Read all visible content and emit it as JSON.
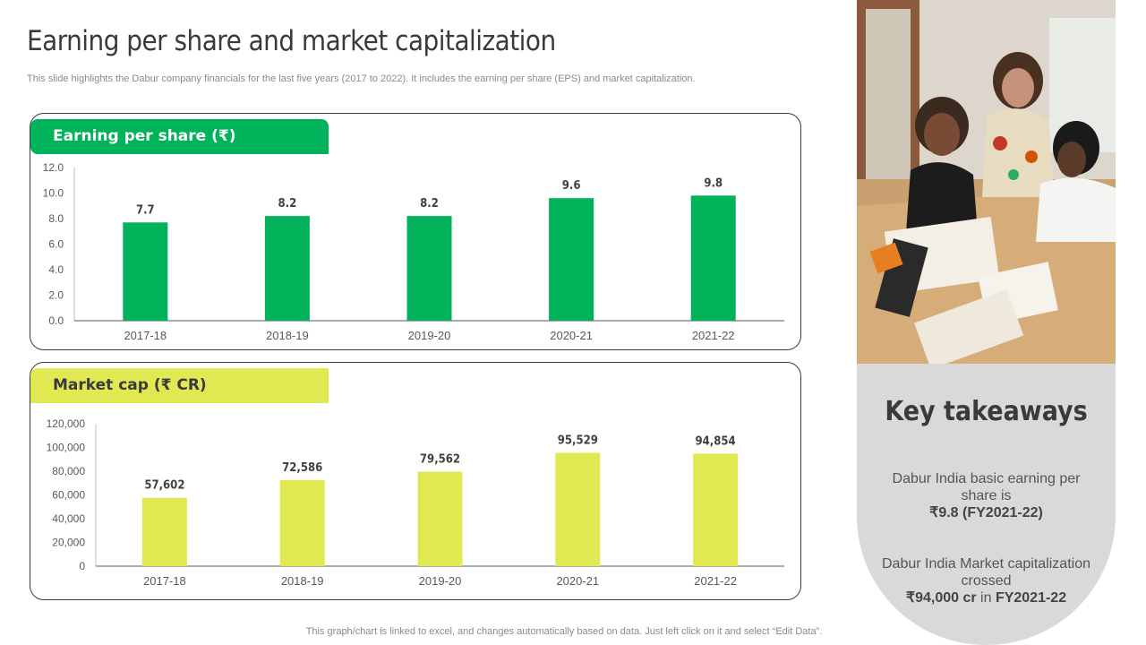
{
  "title": "Earning per share and market capitalization",
  "subtitle": "This slide highlights the Dabur company financials for the last five years (2017 to 2022). It includes the earning per share (EPS) and market capitalization.",
  "eps_panel": {
    "header": "Earning per share (₹)"
  },
  "mc_panel": {
    "header": "Market cap (₹ CR)"
  },
  "chart_data": [
    {
      "type": "bar",
      "title": "Earning per share (₹)",
      "categories": [
        "2017-18",
        "2018-19",
        "2019-20",
        "2020-21",
        "2021-22"
      ],
      "values": [
        7.7,
        8.2,
        8.2,
        9.6,
        9.8
      ],
      "value_labels": [
        "7.7",
        "8.2",
        "8.2",
        "9.6",
        "9.8"
      ],
      "ylim": [
        0,
        12
      ],
      "yticks": [
        "0.0",
        "2.0",
        "4.0",
        "6.0",
        "8.0",
        "10.0",
        "12.0"
      ],
      "color": "#00b259",
      "grid": false
    },
    {
      "type": "bar",
      "title": "Market cap (₹ CR)",
      "categories": [
        "2017-18",
        "2018-19",
        "2019-20",
        "2020-21",
        "2021-22"
      ],
      "values": [
        57602,
        72586,
        79562,
        95529,
        94854
      ],
      "value_labels": [
        "57,602",
        "72,586",
        "79,562",
        "95,529",
        "94,854"
      ],
      "ylim": [
        0,
        120000
      ],
      "yticks": [
        "0",
        "20,000",
        "40,000",
        "60,000",
        "80,000",
        "100,000",
        "120,000"
      ],
      "color": "#e0e852",
      "grid": false
    }
  ],
  "takeaways": {
    "title": "Key takeaways",
    "item1": {
      "prefix": "Dabur India basic earning per share is",
      "bold": "₹9.8 (FY2021-22)"
    },
    "item2": {
      "prefix": "Dabur India Market capitalization crossed",
      "bold1": "₹94,000 cr",
      "mid": "in",
      "bold2": "FY2021-22"
    }
  },
  "footer": "This graph/chart is linked to excel, and changes automatically based on data. Just left click on it and select “Edit Data”."
}
